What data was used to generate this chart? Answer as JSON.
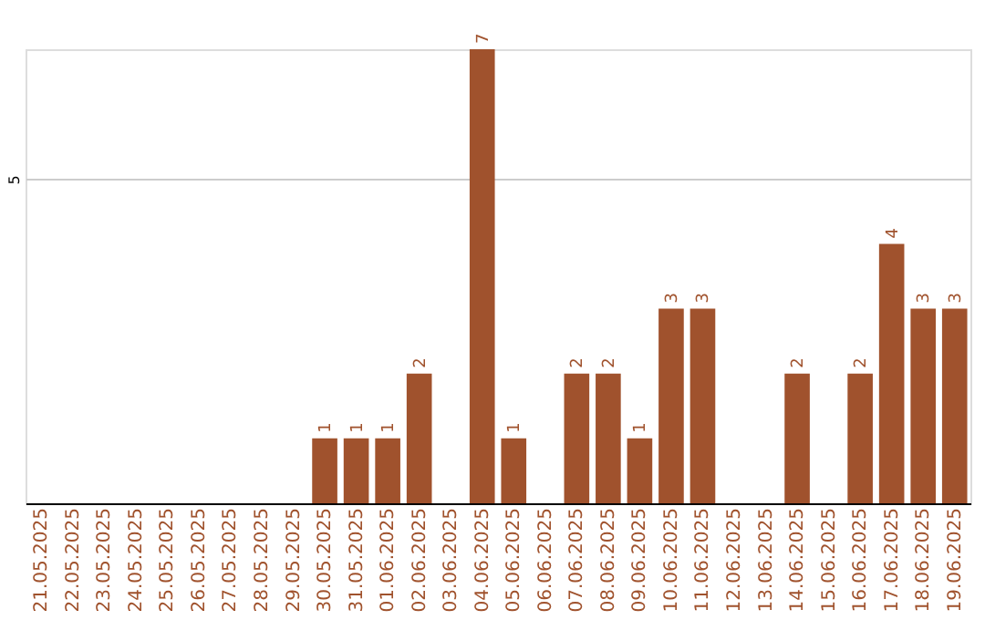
{
  "chart_data": {
    "type": "bar",
    "categories": [
      "21.05.2025",
      "22.05.2025",
      "23.05.2025",
      "24.05.2025",
      "25.05.2025",
      "26.05.2025",
      "27.05.2025",
      "28.05.2025",
      "29.05.2025",
      "30.05.2025",
      "31.05.2025",
      "01.06.2025",
      "02.06.2025",
      "03.06.2025",
      "04.06.2025",
      "05.06.2025",
      "06.06.2025",
      "07.06.2025",
      "08.06.2025",
      "09.06.2025",
      "10.06.2025",
      "11.06.2025",
      "12.06.2025",
      "13.06.2025",
      "14.06.2025",
      "15.06.2025",
      "16.06.2025",
      "17.06.2025",
      "18.06.2025",
      "19.06.2025"
    ],
    "values": [
      0,
      0,
      0,
      0,
      0,
      0,
      0,
      0,
      0,
      1,
      1,
      1,
      2,
      0,
      7,
      1,
      0,
      2,
      2,
      1,
      3,
      3,
      0,
      0,
      2,
      0,
      2,
      4,
      3,
      3
    ],
    "value_labels": [
      null,
      null,
      null,
      null,
      null,
      null,
      null,
      null,
      null,
      "1",
      "1",
      "1",
      "2",
      null,
      "7",
      "1",
      null,
      "2",
      "2",
      "1",
      "3",
      "3",
      null,
      null,
      "2",
      null,
      "2",
      "4",
      "3",
      "3"
    ],
    "color": "#a0522d",
    "ylim": [
      0,
      7
    ],
    "yticks": [
      5
    ],
    "grid": "y"
  }
}
